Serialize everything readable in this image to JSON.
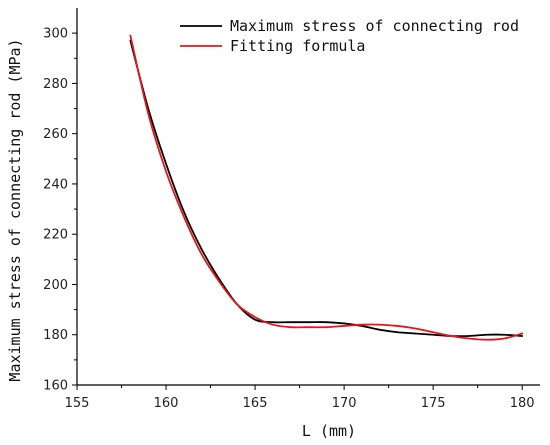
{
  "chart_data": {
    "type": "line",
    "title": "",
    "xlabel": "L (mm)",
    "ylabel": "Maximum stress of connecting rod (MPa)",
    "xlim": [
      155,
      181
    ],
    "ylim": [
      160,
      310
    ],
    "xticks": [
      155,
      160,
      165,
      170,
      175,
      180
    ],
    "yticks": [
      160,
      180,
      200,
      220,
      240,
      260,
      280,
      300
    ],
    "grid": false,
    "legend_position": "top-right",
    "series": [
      {
        "name": "Maximum stress of connecting rod",
        "color": "#000000",
        "x": [
          158,
          159,
          160,
          161,
          162,
          163,
          164,
          165,
          166,
          167,
          168,
          169,
          170,
          171,
          172,
          173,
          174,
          175,
          176,
          177,
          178,
          179,
          180
        ],
        "y": [
          297,
          270,
          248,
          229,
          214,
          202,
          192,
          186,
          185,
          185,
          185,
          185,
          184.5,
          183.5,
          182,
          181,
          180.5,
          180,
          179.5,
          179.5,
          180,
          180,
          179.5
        ]
      },
      {
        "name": "Fitting formula",
        "color": "#e8141c",
        "x": [
          158,
          159,
          160,
          161,
          162,
          163,
          164,
          165,
          166,
          167,
          168,
          169,
          170,
          171,
          172,
          173,
          174,
          175,
          176,
          177,
          178,
          179,
          180
        ],
        "y": [
          299,
          268,
          245,
          227,
          212,
          201,
          192,
          187,
          184,
          183,
          183,
          183,
          183.5,
          184,
          184,
          183.5,
          182.5,
          181,
          179.5,
          178.5,
          178,
          178.5,
          180.5
        ]
      }
    ]
  }
}
